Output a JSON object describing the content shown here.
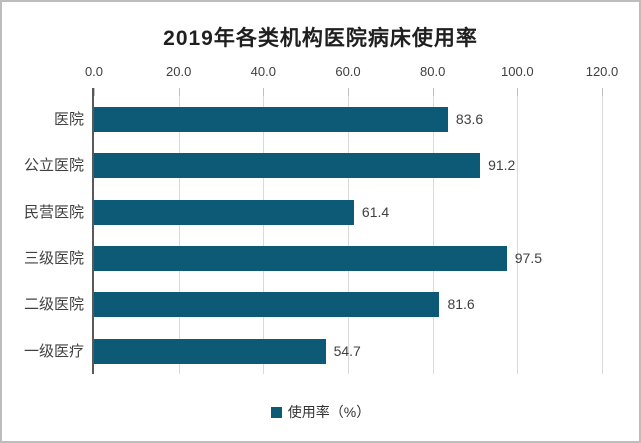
{
  "title": "2019年各类机构医院病床使用率",
  "legend": {
    "label": "使用率（%）"
  },
  "colors": {
    "bar": "#0d5a77",
    "grid": "#d9d9d9",
    "axis": "#595959",
    "tick": "#bfbfbf"
  },
  "chart_data": {
    "type": "bar",
    "orientation": "horizontal",
    "title": "2019年各类机构医院病床使用率",
    "categories": [
      "医院",
      "公立医院",
      "民营医院",
      "三级医院",
      "二级医院",
      "一级医疗"
    ],
    "values": [
      83.6,
      91.2,
      61.4,
      97.5,
      81.6,
      54.7
    ],
    "series_name": "使用率（%）",
    "xlabel": "",
    "ylabel": "",
    "xlim": [
      0,
      120
    ],
    "x_ticks": [
      "0.0",
      "20.0",
      "40.0",
      "60.0",
      "80.0",
      "100.0",
      "120.0"
    ],
    "x_tick_values": [
      0,
      20,
      40,
      60,
      80,
      100,
      120
    ],
    "axis_position": "top",
    "grid": true,
    "data_labels": true,
    "legend_position": "bottom",
    "bar_color": "#0d5a77"
  }
}
